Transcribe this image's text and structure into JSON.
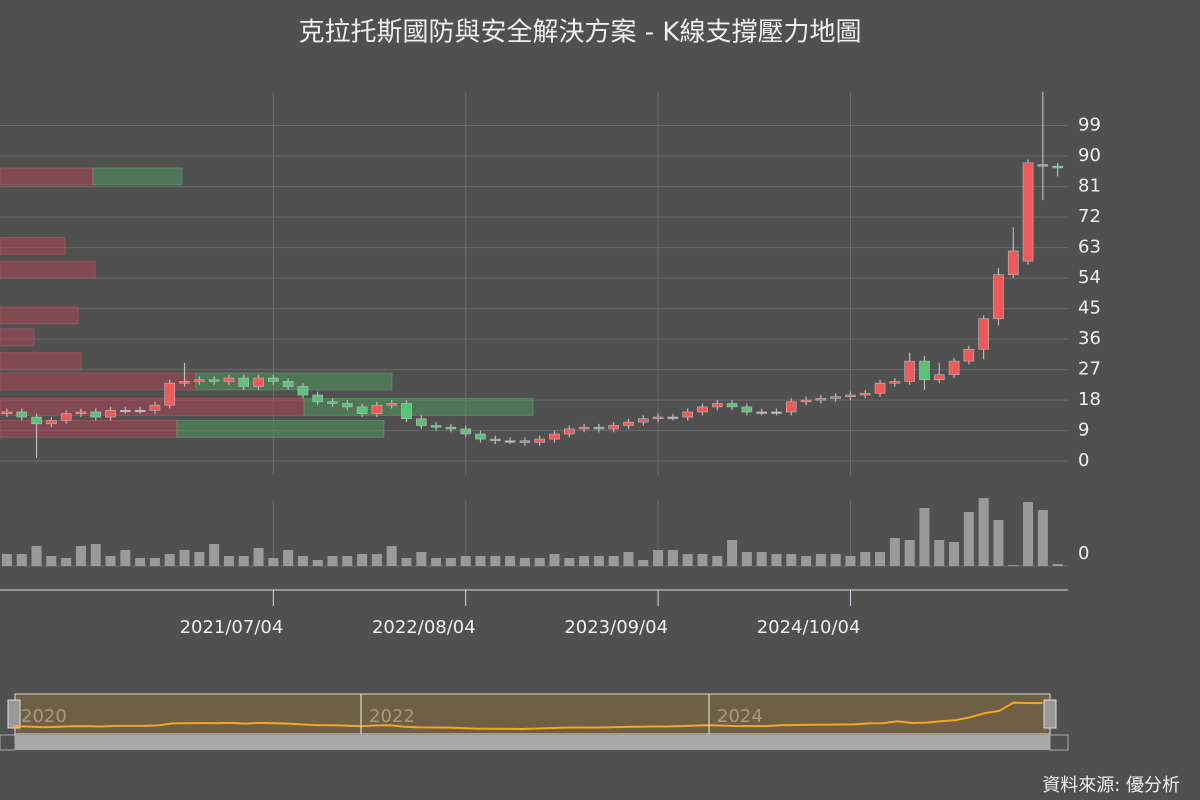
{
  "chart_data": {
    "type": "candlestick",
    "title": "克拉托斯國防與安全解決方案 - K線支撐壓力地圖",
    "source": "資料來源: 優分析",
    "xlim": [
      -0.47,
      71.7
    ],
    "xticks": [
      {
        "value": 18,
        "label": "2021/07/04"
      },
      {
        "value": 31,
        "label": "2022/08/04"
      },
      {
        "value": 44,
        "label": "2023/09/04"
      },
      {
        "value": 57,
        "label": "2024/10/04"
      }
    ],
    "ylim": [
      -4.1,
      108.9
    ],
    "yticks": [
      0,
      9,
      18,
      27,
      36,
      45,
      54,
      63,
      72,
      81,
      90,
      99
    ],
    "up_color": "#ee5a5a",
    "down_color": "#5cc27a",
    "open": [
      14,
      14.5,
      13,
      11,
      12,
      14,
      14.5,
      13,
      15,
      15,
      15,
      16.5,
      23,
      23.5,
      24,
      23.5,
      24.5,
      22,
      24.5,
      23.5,
      22,
      19.5,
      17.5,
      17,
      16,
      14,
      16.5,
      17,
      12.5,
      10.5,
      10,
      9.5,
      8,
      6.5,
      6,
      6,
      5.5,
      6.5,
      8,
      9.5,
      10,
      9.5,
      10.5,
      11.5,
      12.5,
      13,
      13,
      14.5,
      16,
      17,
      16,
      14.5,
      14.5,
      14.5,
      17.5,
      18,
      18.5,
      19,
      19.5,
      20,
      23,
      23.5,
      29.5,
      24,
      25.5,
      29.5,
      33,
      42,
      55,
      59,
      87.5,
      87
    ],
    "high": [
      15.5,
      15.5,
      14,
      13,
      15,
      15.5,
      15.5,
      16,
      16,
      16,
      17.5,
      24,
      29,
      25,
      25,
      25.5,
      25.5,
      25.5,
      25.5,
      24.5,
      23,
      20.5,
      18.5,
      18,
      17,
      17.5,
      18,
      18,
      13.5,
      11.5,
      11,
      10.5,
      9,
      7.5,
      7,
      7,
      7.5,
      9,
      10.5,
      11,
      11,
      11.5,
      12.5,
      13.5,
      14,
      14,
      15.5,
      17,
      18,
      18,
      17,
      15.5,
      15.5,
      18.5,
      19,
      19.5,
      20,
      20.5,
      21,
      24,
      24.5,
      32,
      31,
      29,
      30.5,
      34,
      43,
      57,
      69,
      89,
      109,
      88
    ],
    "low": [
      13,
      12,
      1,
      10,
      11,
      13,
      12,
      12,
      14,
      14,
      14,
      15.5,
      22,
      22.5,
      22.5,
      22.5,
      21,
      21,
      22.5,
      21,
      18.5,
      16.5,
      16,
      15,
      13,
      13,
      15.5,
      11.5,
      9.5,
      9,
      8.5,
      7,
      5.5,
      5,
      5,
      4.5,
      4.5,
      5.5,
      7,
      8.5,
      8.5,
      8.5,
      9.5,
      10.5,
      11.5,
      12,
      12,
      13.5,
      15,
      15,
      13.5,
      13.5,
      13.5,
      13.5,
      16.5,
      17,
      17.5,
      18,
      18.5,
      19,
      22,
      22.5,
      21,
      23,
      24.5,
      28.5,
      30,
      40,
      54,
      58,
      77,
      84
    ],
    "close": [
      14.5,
      13,
      11,
      12,
      14,
      14.5,
      13,
      15,
      15,
      15,
      16.5,
      23,
      23.5,
      24,
      23.5,
      24.5,
      22,
      24.5,
      23.5,
      22,
      19.5,
      17.5,
      17,
      16,
      14,
      16.5,
      17,
      12.5,
      10.5,
      10,
      9.5,
      8,
      6.5,
      6,
      6,
      5.5,
      6.5,
      8,
      9.5,
      10,
      9.5,
      10.5,
      11.5,
      12.5,
      13,
      13,
      14.5,
      16,
      17,
      16,
      14.5,
      14.5,
      14.5,
      17.5,
      18,
      18.5,
      19,
      19.5,
      20,
      23,
      23.5,
      29.5,
      24,
      25.5,
      29.5,
      33,
      42,
      55,
      62,
      88,
      87,
      86.5
    ],
    "volume": [
      12,
      12,
      20,
      10,
      8,
      20,
      22,
      10,
      16,
      8,
      8,
      12,
      16,
      14,
      22,
      10,
      10,
      18,
      8,
      16,
      10,
      6,
      10,
      10,
      12,
      12,
      20,
      8,
      14,
      8,
      8,
      10,
      10,
      10,
      10,
      8,
      8,
      12,
      8,
      10,
      10,
      10,
      14,
      6,
      16,
      16,
      12,
      12,
      10,
      26,
      14,
      14,
      12,
      12,
      10,
      12,
      12,
      10,
      14,
      14,
      28,
      26,
      58,
      26,
      24,
      54,
      68,
      46,
      1,
      64,
      56,
      2
    ],
    "volume_ylim": [
      0,
      72
    ],
    "volume_yticks": [
      0
    ],
    "volume_color": "#9a9a9a",
    "zones": [
      {
        "level": 84,
        "red": 93,
        "green": 89
      },
      {
        "level": 63.5,
        "red": 65,
        "green": 0
      },
      {
        "level": 56.5,
        "red": 95,
        "green": 0
      },
      {
        "level": 43,
        "red": 78,
        "green": 0
      },
      {
        "level": 36.5,
        "red": 34,
        "green": 0
      },
      {
        "level": 29.5,
        "red": 81,
        "green": 0
      },
      {
        "level": 23.5,
        "red": 196,
        "green": 196
      },
      {
        "level": 16,
        "red": 304,
        "green": 229
      },
      {
        "level": 9.5,
        "red": 177,
        "green": 207
      }
    ],
    "navigator_ticks": [
      {
        "value": 0,
        "label": "2020"
      },
      {
        "value": 24,
        "label": "2022"
      },
      {
        "value": 48,
        "label": "2024"
      }
    ],
    "navigator_color": "#f5a623"
  }
}
